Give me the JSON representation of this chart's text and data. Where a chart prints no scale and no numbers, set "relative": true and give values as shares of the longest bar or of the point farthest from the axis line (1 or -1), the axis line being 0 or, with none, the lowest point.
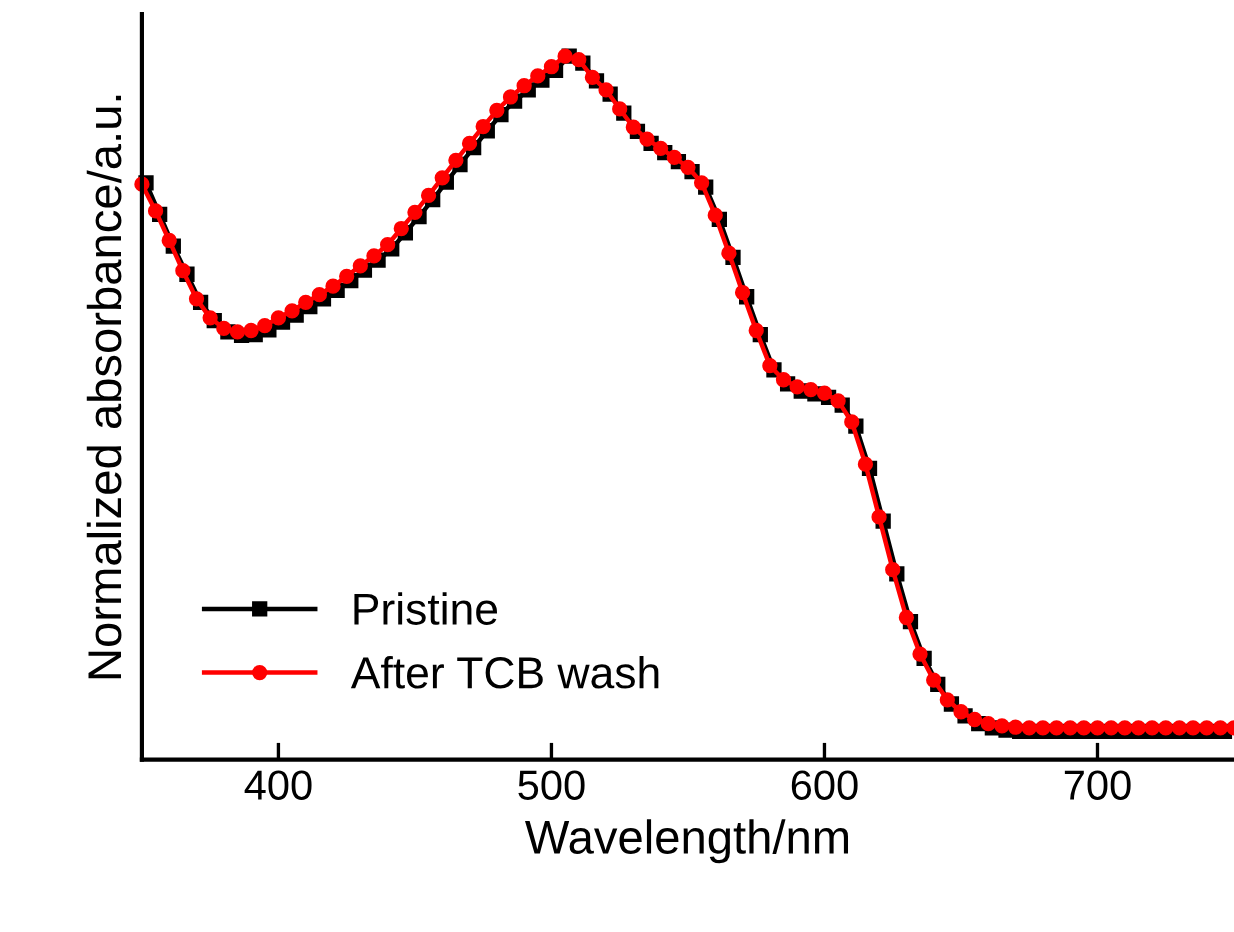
{
  "chart_data": {
    "type": "line",
    "xlabel": "Wavelength/nm",
    "ylabel": "Normalized absorbance/a.u.",
    "relative": true,
    "xlim": [
      350,
      750
    ],
    "xticks": [
      400,
      500,
      600,
      700
    ],
    "tick_labels": "x",
    "grid": false,
    "legend": "bottom left",
    "x": [
      350,
      355,
      360,
      365,
      370,
      375,
      380,
      385,
      390,
      395,
      400,
      405,
      410,
      415,
      420,
      425,
      430,
      435,
      440,
      445,
      450,
      455,
      460,
      465,
      470,
      475,
      480,
      485,
      490,
      495,
      500,
      505,
      510,
      515,
      520,
      525,
      530,
      535,
      540,
      545,
      550,
      555,
      560,
      565,
      570,
      575,
      580,
      585,
      590,
      595,
      600,
      605,
      610,
      615,
      620,
      625,
      630,
      635,
      640,
      645,
      650,
      655,
      660,
      665,
      670,
      675,
      680,
      685,
      690,
      695,
      700,
      705,
      710,
      715,
      720,
      725,
      730,
      735,
      740,
      745,
      750
    ],
    "series": [
      {
        "name": "Pristine",
        "color": "#000000",
        "marker": "square",
        "line_style": "solid",
        "x": [
          351.5,
          356.5,
          361.5,
          366.5,
          371.5,
          376.5,
          381.5,
          386.5,
          391.5,
          396.5,
          401.5,
          406.5,
          411.5,
          416.5,
          421.5,
          426.5,
          431.5,
          436.5,
          441.5,
          446.5,
          451.5,
          456.5,
          461.5,
          466.5,
          471.5,
          476.5,
          481.5,
          486.5,
          491.5,
          496.5,
          501.5,
          506.5,
          511.5,
          516.5,
          521.5,
          526.5,
          531.5,
          536.5,
          541.5,
          546.5,
          551.5,
          556.5,
          561.5,
          566.5,
          571.5,
          576.5,
          581.5,
          586.5,
          591.5,
          596.5,
          601.5,
          606.5,
          611.5,
          616.5,
          621.5,
          626.5,
          631.5,
          636.5,
          641.5,
          646.5,
          651.5,
          656.5,
          661.5,
          666.5,
          671.5,
          676.5,
          681.5,
          686.5,
          691.5,
          696.5,
          701.5,
          706.5,
          711.5,
          716.5,
          721.5,
          726.5,
          731.5,
          736.5,
          741.5,
          746.5
        ],
        "values": [
          0.82,
          0.775,
          0.73,
          0.69,
          0.65,
          0.624,
          0.608,
          0.603,
          0.604,
          0.611,
          0.622,
          0.632,
          0.644,
          0.655,
          0.667,
          0.681,
          0.696,
          0.71,
          0.726,
          0.749,
          0.772,
          0.796,
          0.821,
          0.846,
          0.87,
          0.894,
          0.917,
          0.936,
          0.952,
          0.966,
          0.98,
          1.0,
          0.99,
          0.965,
          0.946,
          0.919,
          0.893,
          0.876,
          0.863,
          0.85,
          0.836,
          0.814,
          0.768,
          0.714,
          0.658,
          0.604,
          0.554,
          0.534,
          0.524,
          0.52,
          0.515,
          0.504,
          0.474,
          0.414,
          0.339,
          0.264,
          0.196,
          0.144,
          0.107,
          0.079,
          0.062,
          0.051,
          0.045,
          0.042,
          0.04,
          0.04,
          0.04,
          0.04,
          0.04,
          0.04,
          0.04,
          0.04,
          0.04,
          0.04,
          0.04,
          0.04,
          0.04,
          0.04,
          0.04,
          0.04
        ]
      },
      {
        "name": "After TCB wash",
        "color": "#ff0000",
        "marker": "circle",
        "line_style": "solid",
        "values": [
          0.818,
          0.78,
          0.738,
          0.695,
          0.655,
          0.628,
          0.613,
          0.608,
          0.61,
          0.617,
          0.628,
          0.638,
          0.65,
          0.661,
          0.673,
          0.687,
          0.702,
          0.716,
          0.732,
          0.755,
          0.778,
          0.802,
          0.827,
          0.852,
          0.876,
          0.9,
          0.923,
          0.942,
          0.958,
          0.972,
          0.985,
          1.0,
          0.995,
          0.97,
          0.952,
          0.925,
          0.899,
          0.882,
          0.869,
          0.856,
          0.842,
          0.82,
          0.774,
          0.72,
          0.664,
          0.61,
          0.56,
          0.54,
          0.53,
          0.526,
          0.521,
          0.51,
          0.48,
          0.42,
          0.345,
          0.27,
          0.202,
          0.15,
          0.113,
          0.085,
          0.068,
          0.057,
          0.051,
          0.048,
          0.046,
          0.045,
          0.045,
          0.045,
          0.045,
          0.045,
          0.045,
          0.045,
          0.045,
          0.045,
          0.045,
          0.045,
          0.045,
          0.045,
          0.045,
          0.045,
          0.045
        ]
      }
    ]
  }
}
